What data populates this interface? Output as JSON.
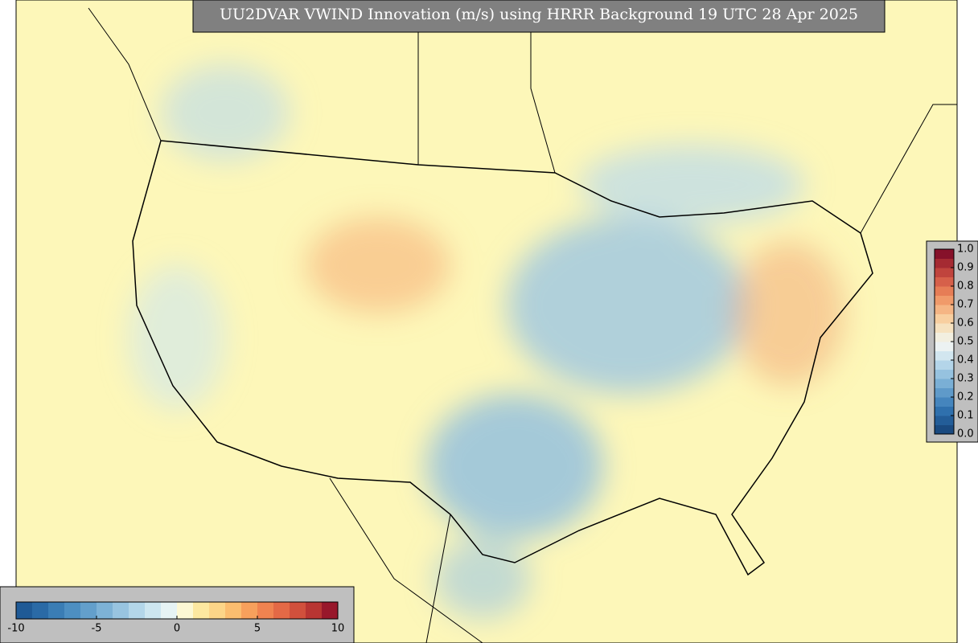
{
  "title": "UU2DVAR VWIND Innovation (m/s) using HRRR Background 19 UTC 28 Apr 2025",
  "colorbar_bottom": {
    "range": [
      -10,
      10
    ],
    "ticks": [
      -10,
      -5,
      0,
      5,
      10
    ],
    "colors": [
      "#1f5a96",
      "#2a6aa6",
      "#3a7db5",
      "#4d8fc2",
      "#639fcb",
      "#7db2d6",
      "#98c4e0",
      "#b3d6e9",
      "#cde6f0",
      "#e6f3f4",
      "#fdf8d4",
      "#fde8a0",
      "#fcd588",
      "#fbbd6f",
      "#f7a05c",
      "#f08350",
      "#e46946",
      "#d1503c",
      "#b83532",
      "#98172b"
    ]
  },
  "colorbar_right": {
    "range": [
      0,
      1
    ],
    "ticks": [
      {
        "value": 0,
        "label": "0.0"
      },
      0.1,
      0.2,
      0.3,
      0.4,
      0.5,
      0.6,
      0.7,
      0.8,
      0.9,
      {
        "value": 1,
        "label": "1.0"
      }
    ],
    "colors": [
      "#1a4a80",
      "#235d98",
      "#2f70ad",
      "#4585bd",
      "#5f9ac9",
      "#7aafd5",
      "#96c2df",
      "#b4d5e9",
      "#d2e6ef",
      "#ecf2f2",
      "#f2efe0",
      "#f6e2c0",
      "#f8cfa0",
      "#f5b584",
      "#f09a6a",
      "#e67d56",
      "#d6604a",
      "#c0443d",
      "#a52a32",
      "#86112a"
    ]
  }
}
